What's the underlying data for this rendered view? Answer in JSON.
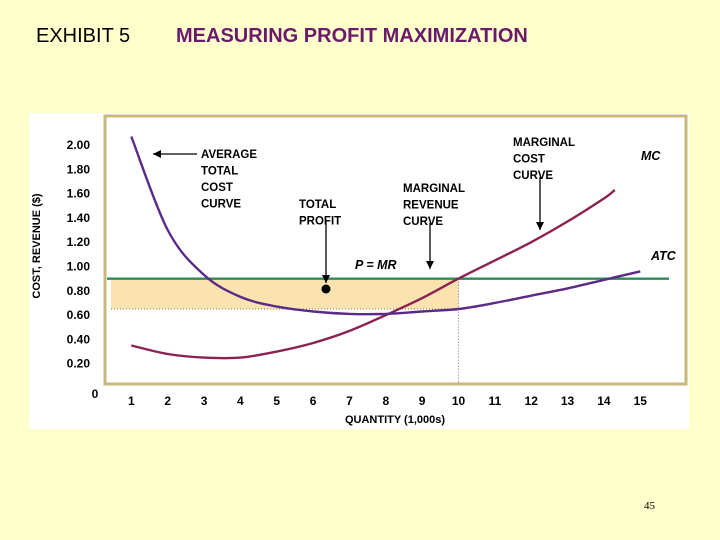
{
  "slide": {
    "label": "EXHIBIT 5",
    "title": "MEASURING PROFIT MAXIMIZATION",
    "page_number": "45"
  },
  "colors": {
    "background": "#ffffcc",
    "title": "#6b1a6b",
    "curve": "#5b2a86",
    "mc_curve": "#8b2252",
    "price_line": "#2e8b57",
    "profit_area": "#fbe3b0",
    "plot_frame": "#c8b87a"
  },
  "chart_data": {
    "type": "line",
    "xlabel": "QUANTITY (1,000s)",
    "ylabel": "COST, REVENUE ($)",
    "x_ticks": [
      "0",
      "1",
      "2",
      "3",
      "4",
      "5",
      "6",
      "7",
      "8",
      "9",
      "10",
      "11",
      "12",
      "13",
      "14",
      "15"
    ],
    "y_ticks": [
      "0.20",
      "0.40",
      "0.60",
      "0.80",
      "1.00",
      "1.20",
      "1.40",
      "1.60",
      "1.80",
      "2.00"
    ],
    "xlim": [
      0,
      15.7
    ],
    "ylim": [
      0,
      2.1
    ],
    "price": 0.9,
    "profit_max_quantity": 10,
    "atc_at_profit_max": 0.65,
    "series": [
      {
        "name": "MC",
        "x": [
          1,
          2,
          3,
          4,
          5,
          6,
          7,
          8,
          9,
          10,
          11,
          12,
          13,
          14,
          14.3
        ],
        "y": [
          0.35,
          0.28,
          0.25,
          0.25,
          0.3,
          0.37,
          0.47,
          0.6,
          0.74,
          0.9,
          1.05,
          1.2,
          1.37,
          1.56,
          1.63
        ]
      },
      {
        "name": "ATC",
        "x": [
          1,
          2,
          3,
          4,
          5,
          6,
          7,
          8,
          9,
          10,
          11,
          12,
          13,
          14,
          15
        ],
        "y": [
          2.07,
          1.3,
          0.93,
          0.75,
          0.67,
          0.63,
          0.61,
          0.61,
          0.63,
          0.65,
          0.7,
          0.76,
          0.82,
          0.89,
          0.96
        ]
      }
    ],
    "annotations": {
      "atc_label": "AVERAGE\nTOTAL\nCOST\nCURVE",
      "profit_label": "TOTAL\nPROFIT",
      "mr_label": "MARGINAL\nREVENUE\nCURVE",
      "mc_label": "MARGINAL\nCOST\nCURVE",
      "mc_tag": "MC",
      "atc_tag": "ATC",
      "price_tag": "P = MR"
    }
  }
}
